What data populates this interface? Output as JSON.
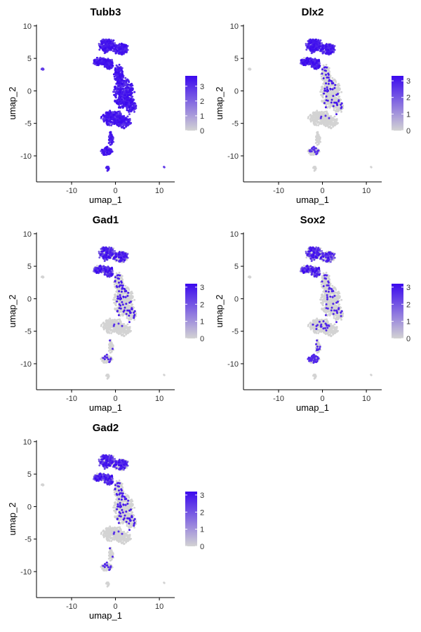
{
  "chart_data": {
    "type": "scatter",
    "subtype": "feature-plot",
    "x_axis": {
      "label": "umap_1",
      "range": [
        -18,
        13.5
      ],
      "ticks": [
        -10,
        0,
        10
      ],
      "tick_labels": [
        "-10",
        "0",
        "10"
      ]
    },
    "y_axis": {
      "label": "umap_2",
      "range": [
        -14,
        10.2
      ],
      "ticks": [
        10,
        5,
        0,
        -5,
        -10
      ],
      "tick_labels": [
        "10",
        "5",
        "0",
        "-5",
        "-10"
      ]
    },
    "colors": {
      "low": "#d3d3d3",
      "high": "#3b09ee"
    },
    "panels": [
      {
        "gene": "Tubb3",
        "legend_max": 3.7,
        "legend_ticks": [
          "3",
          "2",
          "1",
          "0"
        ],
        "expression": "broad"
      },
      {
        "gene": "Dlx2",
        "legend_max": 3.3,
        "legend_ticks": [
          "3",
          "2",
          "1",
          "0"
        ],
        "expression": "top"
      },
      {
        "gene": "Gad1",
        "legend_max": 3.2,
        "legend_ticks": [
          "3",
          "2",
          "1",
          "0"
        ],
        "expression": "top-sparse"
      },
      {
        "gene": "Sox2",
        "legend_max": 3.2,
        "legend_ticks": [
          "3",
          "2",
          "1",
          "0"
        ],
        "expression": "top-scattered"
      },
      {
        "gene": "Gad2",
        "legend_max": 3.2,
        "legend_ticks": [
          "3",
          "2",
          "1",
          "0"
        ],
        "expression": "top-sparse"
      }
    ],
    "clusters": [
      {
        "name": "upper-arch",
        "cx": -2.0,
        "cy": 7.0,
        "rx": 1.6,
        "ry": 0.9,
        "n": 220
      },
      {
        "name": "upper-right",
        "cx": 1.2,
        "cy": 6.5,
        "rx": 1.5,
        "ry": 0.8,
        "n": 160
      },
      {
        "name": "upper-left",
        "cx": -3.5,
        "cy": 4.5,
        "rx": 1.4,
        "ry": 0.5,
        "n": 140
      },
      {
        "name": "left-wing",
        "cx": -1.5,
        "cy": 4.0,
        "rx": 1.0,
        "ry": 0.8,
        "n": 110
      },
      {
        "name": "neck",
        "cx": 0.8,
        "cy": 2.5,
        "rx": 1.0,
        "ry": 1.3,
        "n": 160
      },
      {
        "name": "mid-body",
        "cx": 1.8,
        "cy": -0.5,
        "rx": 2.0,
        "ry": 2.2,
        "n": 380
      },
      {
        "name": "mid-right",
        "cx": 3.5,
        "cy": -2.2,
        "rx": 1.1,
        "ry": 1.0,
        "n": 110
      },
      {
        "name": "lower-left",
        "cx": -0.5,
        "cy": -4.2,
        "rx": 2.3,
        "ry": 1.0,
        "n": 280
      },
      {
        "name": "lower-right",
        "cx": 1.8,
        "cy": -4.8,
        "rx": 1.5,
        "ry": 0.8,
        "n": 150
      },
      {
        "name": "tail",
        "cx": -1.0,
        "cy": -7.3,
        "rx": 0.5,
        "ry": 1.0,
        "n": 50
      },
      {
        "name": "bottom-blob",
        "cx": -2.0,
        "cy": -9.3,
        "rx": 1.2,
        "ry": 0.6,
        "n": 90
      },
      {
        "name": "bottom-small",
        "cx": -1.7,
        "cy": -11.9,
        "rx": 0.4,
        "ry": 0.3,
        "n": 16
      },
      {
        "name": "far-left",
        "cx": -16.6,
        "cy": 3.4,
        "rx": 0.2,
        "ry": 0.2,
        "n": 10
      },
      {
        "name": "far-right",
        "cx": 11.1,
        "cy": -11.7,
        "rx": 0.1,
        "ry": 0.1,
        "n": 2
      }
    ]
  }
}
